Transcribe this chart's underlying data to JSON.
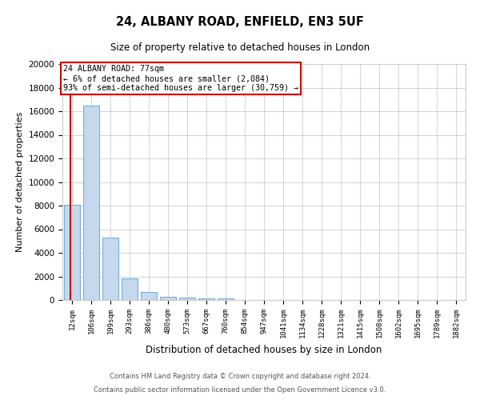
{
  "title1": "24, ALBANY ROAD, ENFIELD, EN3 5UF",
  "title2": "Size of property relative to detached houses in London",
  "xlabel": "Distribution of detached houses by size in London",
  "ylabel": "Number of detached properties",
  "categories": [
    "12sqm",
    "106sqm",
    "199sqm",
    "293sqm",
    "386sqm",
    "480sqm",
    "573sqm",
    "667sqm",
    "760sqm",
    "854sqm",
    "947sqm",
    "1041sqm",
    "1134sqm",
    "1228sqm",
    "1321sqm",
    "1415sqm",
    "1508sqm",
    "1602sqm",
    "1695sqm",
    "1789sqm",
    "1882sqm"
  ],
  "bar_values": [
    8100,
    16500,
    5300,
    1800,
    650,
    270,
    190,
    140,
    110,
    0,
    0,
    0,
    0,
    0,
    0,
    0,
    0,
    0,
    0,
    0,
    0
  ],
  "bar_color": "#c5d8ee",
  "bar_edge_color": "#7aaed6",
  "annotation_text": "24 ALBANY ROAD: 77sqm\n← 6% of detached houses are smaller (2,084)\n93% of semi-detached houses are larger (30,759) →",
  "annotation_box_color": "#ffffff",
  "annotation_box_edge": "#cc0000",
  "vline_color": "#cc0000",
  "ylim": [
    0,
    20000
  ],
  "yticks": [
    0,
    2000,
    4000,
    6000,
    8000,
    10000,
    12000,
    14000,
    16000,
    18000,
    20000
  ],
  "grid_color": "#cccccc",
  "background_color": "#ffffff",
  "footer_line1": "Contains HM Land Registry data © Crown copyright and database right 2024.",
  "footer_line2": "Contains public sector information licensed under the Open Government Licence v3.0."
}
